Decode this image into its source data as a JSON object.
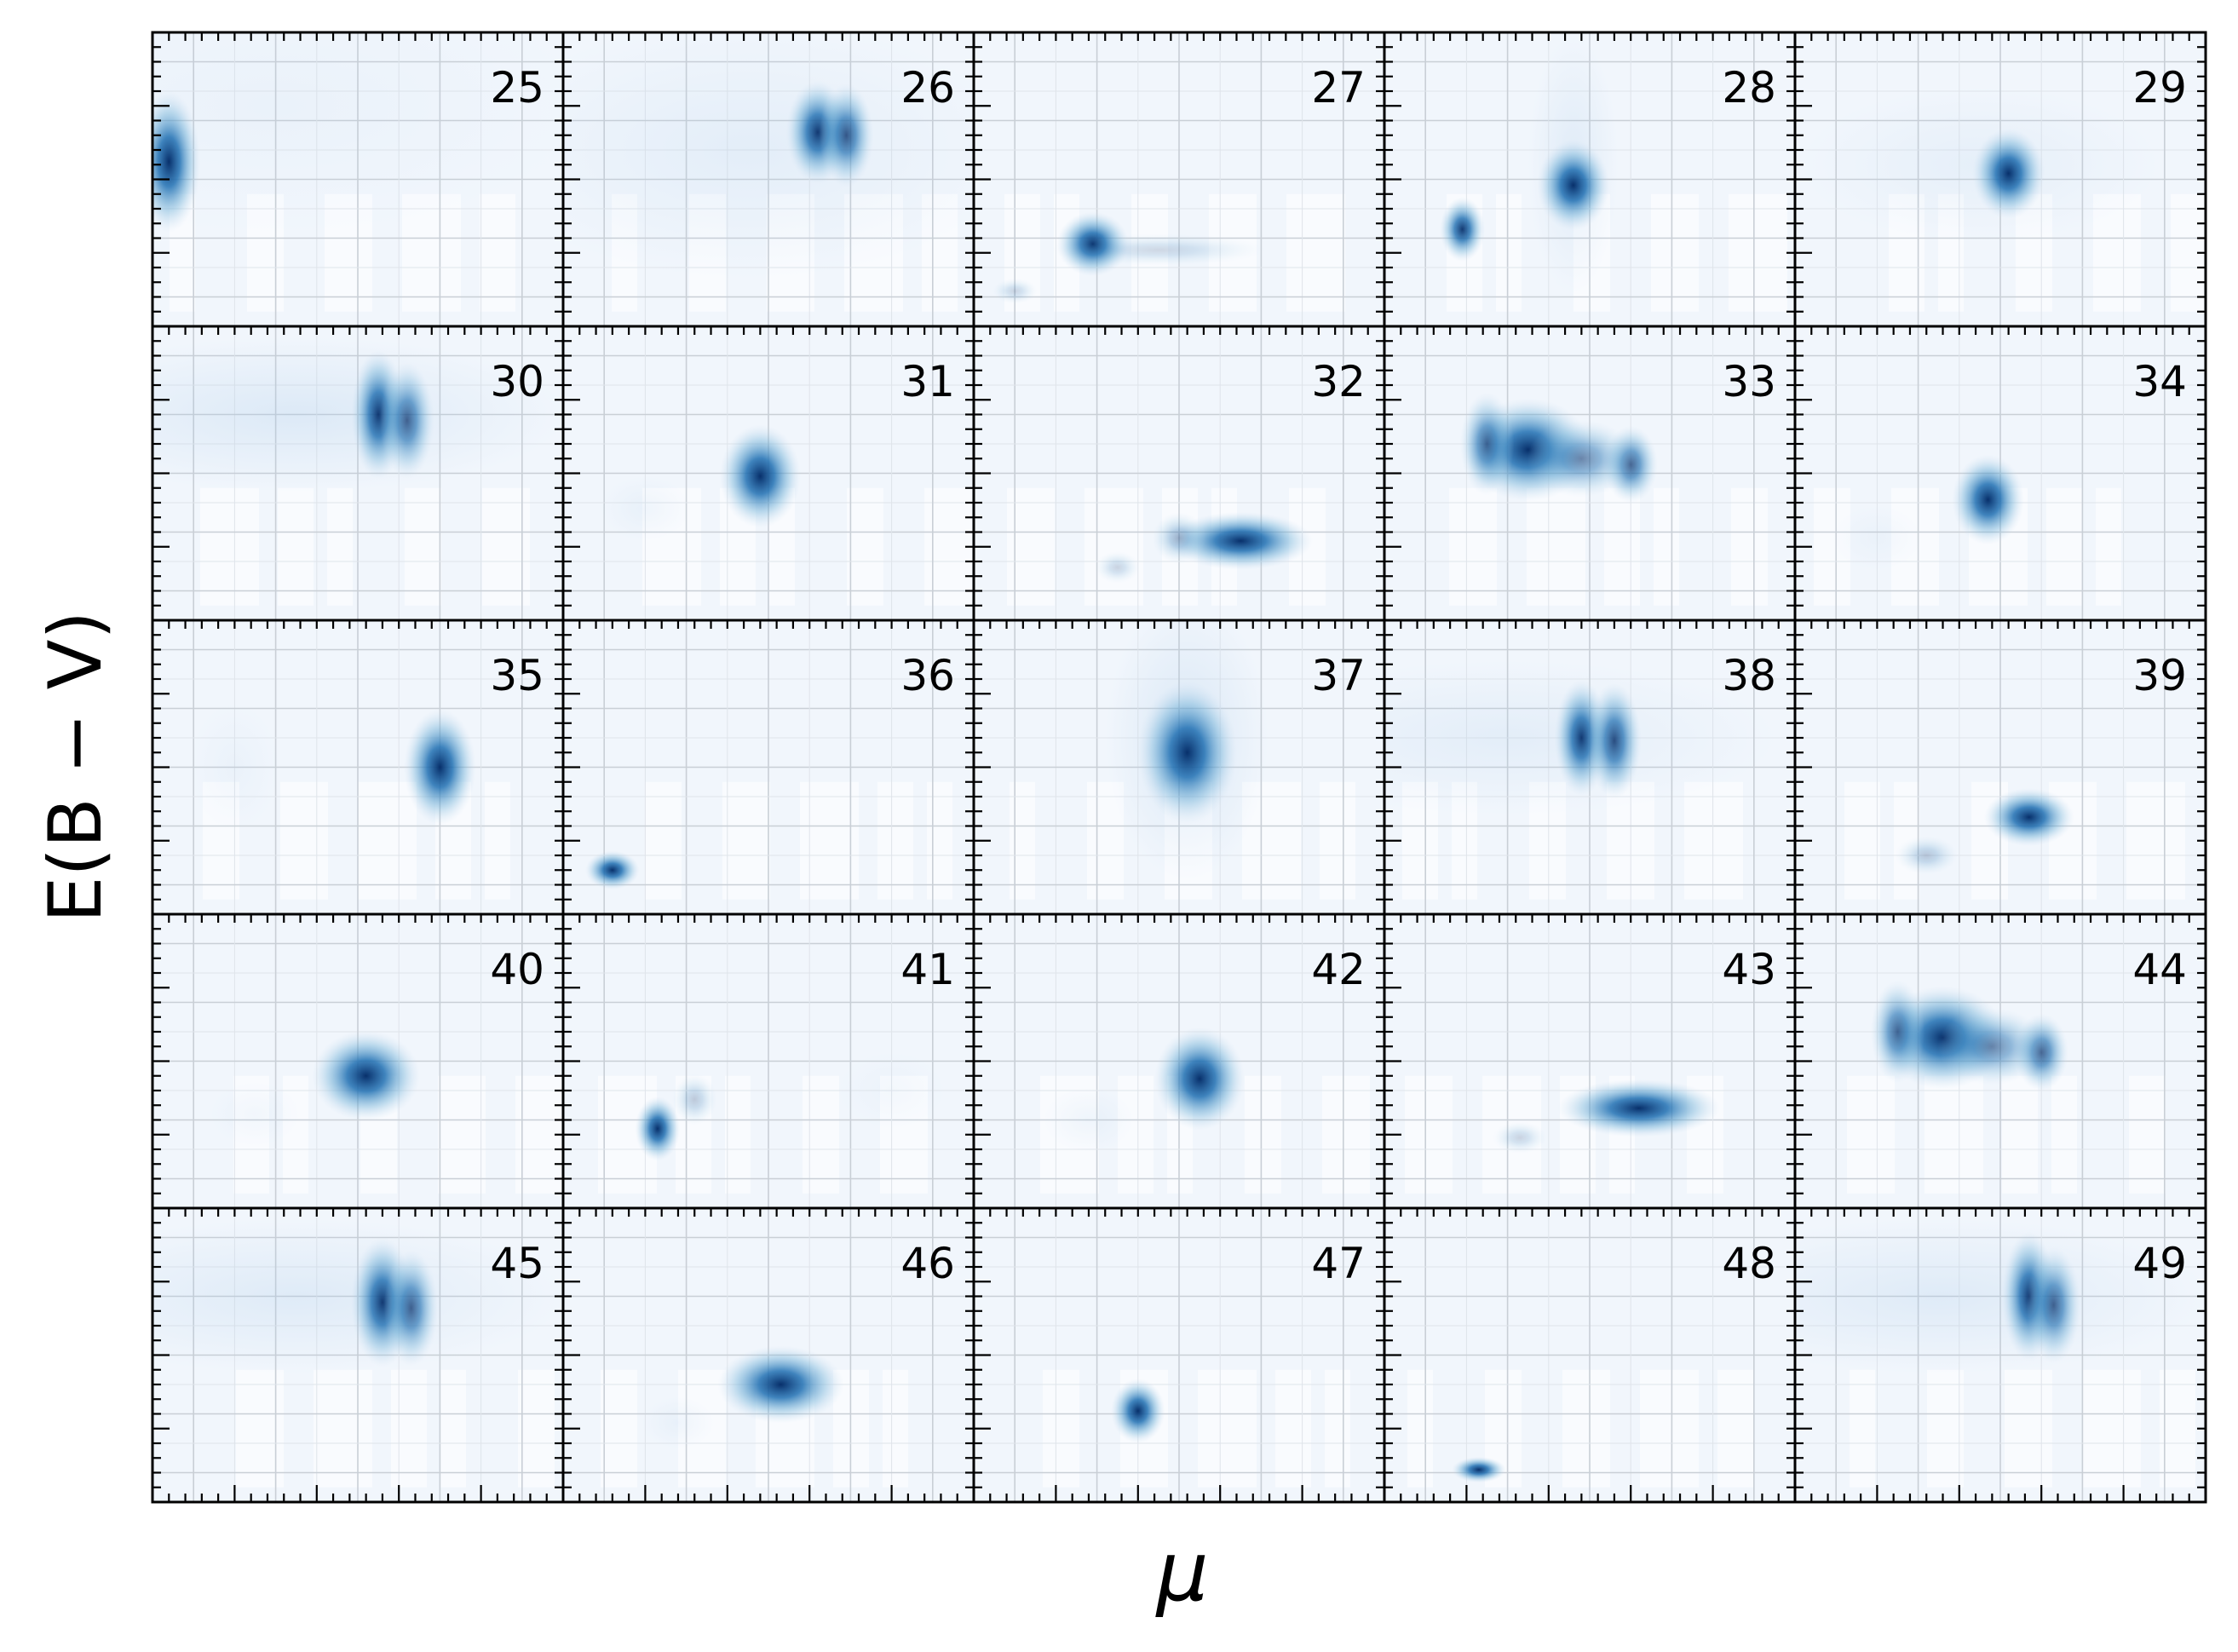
{
  "figure": {
    "xlabel": "μ",
    "ylabel": "E(B − V)",
    "colormap": "Blues",
    "grid": true,
    "rows": 5,
    "cols": 5,
    "sharex": true,
    "sharey": true,
    "tick_labels_visible": false
  },
  "chart_data": {
    "type": "heatmap",
    "description_of_values": "2-D density peaks per panel, in fractional axis units (x: 0 = left, 1 = right of μ range; y: 0 = bottom, 1 = top of E(B−V) range); axes carry no printed tick values",
    "panels": [
      {
        "id": "25",
        "blobs": [
          {
            "x": 0.04,
            "y": 0.56,
            "sx": 0.035,
            "sy": 0.11,
            "w": 1.0
          }
        ],
        "bg": [
          {
            "x": 0.3,
            "y": 0.75,
            "sx": 0.35,
            "sy": 0.2,
            "w": 0.06
          }
        ]
      },
      {
        "id": "26",
        "blobs": [
          {
            "x": 0.62,
            "y": 0.66,
            "sx": 0.035,
            "sy": 0.08,
            "w": 0.95
          },
          {
            "x": 0.69,
            "y": 0.65,
            "sx": 0.03,
            "sy": 0.08,
            "w": 0.8
          }
        ],
        "bg": [
          {
            "x": 0.45,
            "y": 0.6,
            "sx": 0.3,
            "sy": 0.2,
            "w": 0.12
          }
        ]
      },
      {
        "id": "27",
        "blobs": [
          {
            "x": 0.29,
            "y": 0.28,
            "sx": 0.04,
            "sy": 0.05,
            "w": 1.0
          },
          {
            "x": 0.45,
            "y": 0.26,
            "sx": 0.12,
            "sy": 0.025,
            "w": 0.18
          },
          {
            "x": 0.1,
            "y": 0.12,
            "sx": 0.025,
            "sy": 0.02,
            "w": 0.2
          }
        ],
        "bg": []
      },
      {
        "id": "28",
        "blobs": [
          {
            "x": 0.46,
            "y": 0.48,
            "sx": 0.04,
            "sy": 0.07,
            "w": 1.0
          },
          {
            "x": 0.19,
            "y": 0.33,
            "sx": 0.025,
            "sy": 0.05,
            "w": 0.95
          }
        ],
        "bg": [
          {
            "x": 0.46,
            "y": 0.55,
            "sx": 0.05,
            "sy": 0.2,
            "w": 0.15
          }
        ]
      },
      {
        "id": "29",
        "blobs": [
          {
            "x": 0.52,
            "y": 0.52,
            "sx": 0.04,
            "sy": 0.07,
            "w": 1.0
          }
        ],
        "bg": [
          {
            "x": 0.45,
            "y": 0.55,
            "sx": 0.2,
            "sy": 0.12,
            "w": 0.1
          }
        ]
      },
      {
        "id": "30",
        "blobs": [
          {
            "x": 0.55,
            "y": 0.7,
            "sx": 0.03,
            "sy": 0.1,
            "w": 0.95
          },
          {
            "x": 0.62,
            "y": 0.68,
            "sx": 0.03,
            "sy": 0.09,
            "w": 0.75
          }
        ],
        "bg": [
          {
            "x": 0.35,
            "y": 0.7,
            "sx": 0.3,
            "sy": 0.12,
            "w": 0.18
          }
        ]
      },
      {
        "id": "31",
        "blobs": [
          {
            "x": 0.48,
            "y": 0.49,
            "sx": 0.045,
            "sy": 0.08,
            "w": 1.0
          }
        ],
        "bg": [
          {
            "x": 0.2,
            "y": 0.38,
            "sx": 0.05,
            "sy": 0.05,
            "w": 0.08
          }
        ]
      },
      {
        "id": "32",
        "blobs": [
          {
            "x": 0.65,
            "y": 0.27,
            "sx": 0.08,
            "sy": 0.045,
            "w": 1.0
          },
          {
            "x": 0.5,
            "y": 0.28,
            "sx": 0.03,
            "sy": 0.04,
            "w": 0.35
          },
          {
            "x": 0.35,
            "y": 0.18,
            "sx": 0.025,
            "sy": 0.025,
            "w": 0.2
          }
        ],
        "bg": []
      },
      {
        "id": "33",
        "blobs": [
          {
            "x": 0.35,
            "y": 0.58,
            "sx": 0.07,
            "sy": 0.08,
            "w": 1.0
          },
          {
            "x": 0.25,
            "y": 0.6,
            "sx": 0.03,
            "sy": 0.08,
            "w": 0.7
          },
          {
            "x": 0.6,
            "y": 0.53,
            "sx": 0.03,
            "sy": 0.06,
            "w": 0.75
          },
          {
            "x": 0.48,
            "y": 0.55,
            "sx": 0.06,
            "sy": 0.06,
            "w": 0.55
          }
        ],
        "bg": []
      },
      {
        "id": "34",
        "blobs": [
          {
            "x": 0.47,
            "y": 0.41,
            "sx": 0.04,
            "sy": 0.07,
            "w": 1.0
          }
        ],
        "bg": [
          {
            "x": 0.2,
            "y": 0.28,
            "sx": 0.05,
            "sy": 0.05,
            "w": 0.06
          }
        ]
      },
      {
        "id": "35",
        "blobs": [
          {
            "x": 0.7,
            "y": 0.5,
            "sx": 0.04,
            "sy": 0.09,
            "w": 1.0
          }
        ],
        "bg": [
          {
            "x": 0.2,
            "y": 0.5,
            "sx": 0.05,
            "sy": 0.1,
            "w": 0.06
          }
        ]
      },
      {
        "id": "36",
        "blobs": [
          {
            "x": 0.12,
            "y": 0.15,
            "sx": 0.03,
            "sy": 0.03,
            "w": 1.0
          }
        ],
        "bg": []
      },
      {
        "id": "37",
        "blobs": [
          {
            "x": 0.52,
            "y": 0.55,
            "sx": 0.055,
            "sy": 0.11,
            "w": 1.0
          }
        ],
        "bg": [
          {
            "x": 0.52,
            "y": 0.6,
            "sx": 0.09,
            "sy": 0.22,
            "w": 0.2
          }
        ]
      },
      {
        "id": "38",
        "blobs": [
          {
            "x": 0.48,
            "y": 0.6,
            "sx": 0.03,
            "sy": 0.09,
            "w": 0.95
          },
          {
            "x": 0.56,
            "y": 0.59,
            "sx": 0.03,
            "sy": 0.09,
            "w": 0.85
          }
        ],
        "bg": [
          {
            "x": 0.3,
            "y": 0.6,
            "sx": 0.3,
            "sy": 0.12,
            "w": 0.12
          }
        ]
      },
      {
        "id": "39",
        "blobs": [
          {
            "x": 0.57,
            "y": 0.33,
            "sx": 0.05,
            "sy": 0.045,
            "w": 1.0
          },
          {
            "x": 0.32,
            "y": 0.2,
            "sx": 0.035,
            "sy": 0.03,
            "w": 0.25
          }
        ],
        "bg": []
      },
      {
        "id": "40",
        "blobs": [
          {
            "x": 0.52,
            "y": 0.45,
            "sx": 0.06,
            "sy": 0.07,
            "w": 1.0
          }
        ],
        "bg": [
          {
            "x": 0.25,
            "y": 0.32,
            "sx": 0.05,
            "sy": 0.05,
            "w": 0.06
          }
        ]
      },
      {
        "id": "41",
        "blobs": [
          {
            "x": 0.23,
            "y": 0.27,
            "sx": 0.025,
            "sy": 0.05,
            "w": 1.0
          },
          {
            "x": 0.32,
            "y": 0.37,
            "sx": 0.025,
            "sy": 0.04,
            "w": 0.25
          }
        ],
        "bg": [
          {
            "x": 0.8,
            "y": 0.4,
            "sx": 0.06,
            "sy": 0.06,
            "w": 0.05
          }
        ]
      },
      {
        "id": "42",
        "blobs": [
          {
            "x": 0.55,
            "y": 0.44,
            "sx": 0.05,
            "sy": 0.08,
            "w": 1.0
          }
        ],
        "bg": [
          {
            "x": 0.28,
            "y": 0.3,
            "sx": 0.05,
            "sy": 0.05,
            "w": 0.08
          }
        ]
      },
      {
        "id": "43",
        "blobs": [
          {
            "x": 0.62,
            "y": 0.34,
            "sx": 0.09,
            "sy": 0.045,
            "w": 1.0
          },
          {
            "x": 0.33,
            "y": 0.24,
            "sx": 0.03,
            "sy": 0.025,
            "w": 0.2
          }
        ],
        "bg": []
      },
      {
        "id": "44",
        "blobs": [
          {
            "x": 0.36,
            "y": 0.58,
            "sx": 0.07,
            "sy": 0.08,
            "w": 1.0
          },
          {
            "x": 0.25,
            "y": 0.6,
            "sx": 0.03,
            "sy": 0.08,
            "w": 0.7
          },
          {
            "x": 0.6,
            "y": 0.53,
            "sx": 0.03,
            "sy": 0.06,
            "w": 0.75
          },
          {
            "x": 0.48,
            "y": 0.55,
            "sx": 0.06,
            "sy": 0.06,
            "w": 0.55
          }
        ],
        "bg": []
      },
      {
        "id": "45",
        "blobs": [
          {
            "x": 0.56,
            "y": 0.68,
            "sx": 0.035,
            "sy": 0.1,
            "w": 0.95
          },
          {
            "x": 0.63,
            "y": 0.66,
            "sx": 0.03,
            "sy": 0.09,
            "w": 0.75
          }
        ],
        "bg": [
          {
            "x": 0.35,
            "y": 0.7,
            "sx": 0.3,
            "sy": 0.12,
            "w": 0.16
          }
        ]
      },
      {
        "id": "46",
        "blobs": [
          {
            "x": 0.53,
            "y": 0.4,
            "sx": 0.07,
            "sy": 0.06,
            "w": 1.0
          }
        ],
        "bg": [
          {
            "x": 0.28,
            "y": 0.27,
            "sx": 0.04,
            "sy": 0.04,
            "w": 0.08
          }
        ]
      },
      {
        "id": "47",
        "blobs": [
          {
            "x": 0.4,
            "y": 0.31,
            "sx": 0.03,
            "sy": 0.05,
            "w": 1.0
          }
        ],
        "bg": []
      },
      {
        "id": "48",
        "blobs": [
          {
            "x": 0.23,
            "y": 0.11,
            "sx": 0.03,
            "sy": 0.02,
            "w": 1.0
          }
        ],
        "bg": []
      },
      {
        "id": "49",
        "blobs": [
          {
            "x": 0.57,
            "y": 0.7,
            "sx": 0.03,
            "sy": 0.1,
            "w": 0.95
          },
          {
            "x": 0.63,
            "y": 0.67,
            "sx": 0.03,
            "sy": 0.09,
            "w": 0.75
          }
        ],
        "bg": [
          {
            "x": 0.35,
            "y": 0.7,
            "sx": 0.3,
            "sy": 0.12,
            "w": 0.16
          }
        ]
      }
    ]
  }
}
